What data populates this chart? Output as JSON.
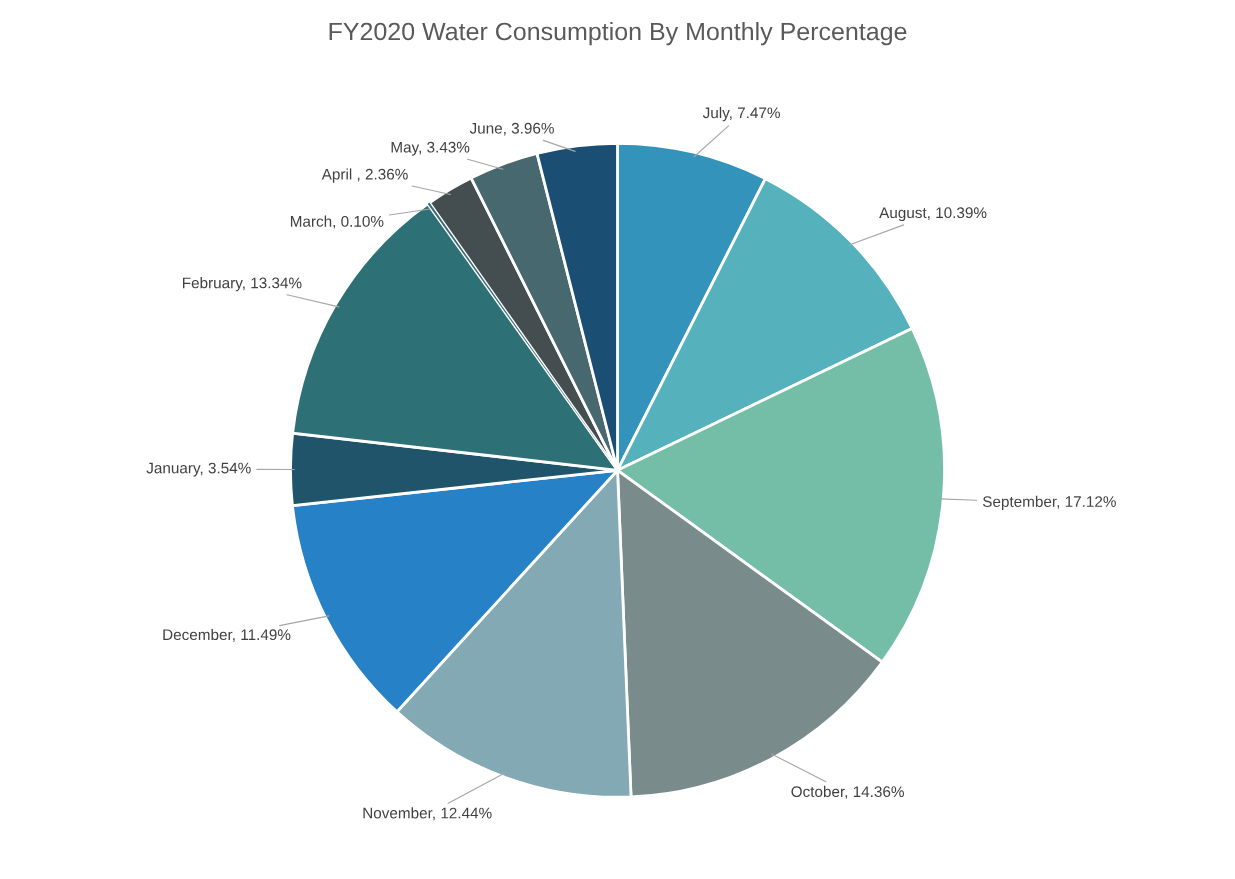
{
  "chart_data": {
    "type": "pie",
    "title": "FY2020 Water Consumption By Monthly Percentage",
    "categories": [
      "July",
      "August",
      "September",
      "October",
      "November",
      "December",
      "January",
      "February",
      "March",
      "April ",
      "May",
      "June"
    ],
    "values": [
      7.47,
      10.39,
      17.12,
      14.36,
      12.44,
      11.49,
      3.54,
      13.34,
      0.1,
      2.36,
      3.43,
      3.96
    ],
    "value_labels": [
      "7.47%",
      "10.39%",
      "17.12%",
      "14.36%",
      "12.44%",
      "11.49%",
      "3.54%",
      "13.34%",
      "0.10%",
      "2.36%",
      "3.43%",
      "3.96%"
    ],
    "colors": [
      "#3393bb",
      "#55b2bd",
      "#74bda6",
      "#7a8b8b",
      "#83aab4",
      "#2681c6",
      "#1f546b",
      "#2d7076",
      "#3a6a70",
      "#444e50",
      "#46686e",
      "#1a4e73"
    ]
  }
}
